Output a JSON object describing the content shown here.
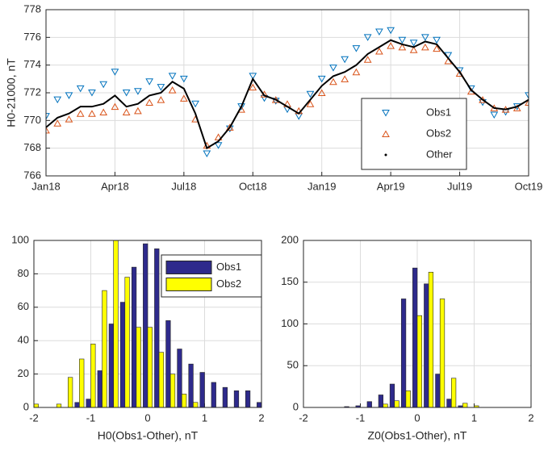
{
  "chart_data": [
    {
      "type": "scatter",
      "ylabel": "H0-21000, nT",
      "grid": true,
      "legend": "southeast",
      "x": [
        0,
        0.5,
        1,
        1.5,
        2,
        2.5,
        3,
        3.5,
        4,
        4.5,
        5,
        5.5,
        6,
        6.5,
        7,
        7.5,
        8,
        8.5,
        9,
        9.5,
        10,
        10.5,
        11,
        11.5,
        12,
        12.5,
        13,
        13.5,
        14,
        14.5,
        15,
        15.5,
        16,
        16.5,
        17,
        17.5,
        18,
        18.5,
        19,
        19.5,
        20,
        20.5,
        21
      ],
      "xlim": [
        0,
        21
      ],
      "xticks": [
        {
          "value": 0,
          "label": "Jan18"
        },
        {
          "value": 3,
          "label": "Apr18"
        },
        {
          "value": 6,
          "label": "Jul18"
        },
        {
          "value": 9,
          "label": "Oct18"
        },
        {
          "value": 12,
          "label": "Jan19"
        },
        {
          "value": 15,
          "label": "Apr19"
        },
        {
          "value": 18,
          "label": "Jul19"
        },
        {
          "value": 21,
          "label": "Oct19"
        }
      ],
      "ylim": [
        766,
        778
      ],
      "yticks": [
        766,
        768,
        770,
        772,
        774,
        776,
        778
      ],
      "series": [
        {
          "name": "Obs1",
          "color": "#0072bd",
          "style": "triangle-down",
          "values": [
            770.3,
            771.5,
            771.8,
            772.3,
            772,
            772.6,
            773.5,
            772,
            772.1,
            772.8,
            772.4,
            773.2,
            773,
            771.2,
            767.6,
            768.2,
            769.4,
            771,
            773.2,
            771.6,
            771.4,
            770.8,
            770.3,
            771.9,
            773,
            773.8,
            774.4,
            775.2,
            776,
            776.4,
            776.5,
            775.8,
            775.6,
            776,
            775.8,
            774.7,
            773.6,
            772.3,
            771.3,
            770.4,
            770.6,
            771,
            771.8
          ]
        },
        {
          "name": "Obs2",
          "color": "#d95319",
          "style": "triangle-up",
          "values": [
            769.3,
            769.8,
            770.1,
            770.5,
            770.5,
            770.6,
            771,
            770.6,
            770.7,
            771.3,
            771.5,
            772.2,
            771.6,
            770.1,
            768.2,
            768.8,
            769.5,
            770.8,
            772.4,
            771.9,
            771.5,
            771.2,
            770.7,
            771.2,
            772,
            772.8,
            773,
            773.5,
            774.4,
            775,
            775.4,
            775.3,
            775.1,
            775.3,
            775.2,
            774.3,
            773.4,
            772.1,
            771.5,
            770.9,
            770.8,
            770.9,
            771.3
          ]
        },
        {
          "name": "Other",
          "color": "#000000",
          "style": "line",
          "values": [
            769.5,
            770.2,
            770.5,
            771,
            771,
            771.2,
            771.8,
            771,
            771.2,
            771.8,
            772,
            772.8,
            772.3,
            770.5,
            768,
            768.5,
            769.5,
            771,
            773,
            771.8,
            771.5,
            771,
            770.5,
            771.5,
            772.5,
            773.2,
            773.5,
            774,
            774.8,
            775.3,
            775.8,
            775.5,
            775.3,
            775.7,
            775.5,
            774.5,
            773.5,
            772.2,
            771.5,
            770.9,
            770.8,
            771,
            771.5
          ]
        }
      ]
    },
    {
      "type": "histogram",
      "xlabel": "H0(Obs1-Other), nT",
      "grid": true,
      "legend": "northeast",
      "bins": [
        -2.1,
        -1.9,
        -1.7,
        -1.5,
        -1.3,
        -1.1,
        -0.9,
        -0.7,
        -0.5,
        -0.3,
        -0.1,
        0.1,
        0.3,
        0.5,
        0.7,
        0.9,
        1.1,
        1.3,
        1.5,
        1.7,
        1.9,
        2.1
      ],
      "xlim": [
        -2,
        2
      ],
      "xticks": [
        -2,
        -1,
        0,
        1,
        2
      ],
      "ylim": [
        0,
        100
      ],
      "yticks": [
        0,
        20,
        40,
        60,
        80,
        100
      ],
      "series": [
        {
          "name": "Obs1",
          "color": "#2e2a8c",
          "values": [
            0,
            0,
            0,
            0,
            3,
            5,
            22,
            50,
            63,
            84,
            98,
            95,
            52,
            35,
            26,
            21,
            15,
            12,
            10,
            10,
            3
          ]
        },
        {
          "name": "Obs2",
          "color": "#ffff00",
          "values": [
            2,
            0,
            2,
            18,
            29,
            38,
            70,
            100,
            78,
            48,
            48,
            33,
            20,
            8,
            3,
            0,
            0,
            0,
            0,
            0,
            0
          ]
        }
      ]
    },
    {
      "type": "histogram",
      "xlabel": "Z0(Obs1-Other), nT",
      "grid": true,
      "bins": [
        -2.1,
        -1.9,
        -1.7,
        -1.5,
        -1.3,
        -1.1,
        -0.9,
        -0.7,
        -0.5,
        -0.3,
        -0.1,
        0.1,
        0.3,
        0.5,
        0.7,
        0.9,
        1.1,
        1.3,
        1.5,
        1.7,
        1.9,
        2.1
      ],
      "xlim": [
        -2,
        2
      ],
      "xticks": [
        -2,
        -1,
        0,
        1,
        2
      ],
      "ylim": [
        0,
        200
      ],
      "yticks": [
        0,
        50,
        100,
        150,
        200
      ],
      "series": [
        {
          "name": "Obs1",
          "color": "#2e2a8c",
          "values": [
            0,
            0,
            0,
            0,
            1,
            2,
            7,
            15,
            28,
            130,
            167,
            148,
            40,
            10,
            2,
            0,
            0,
            0,
            0,
            0,
            0
          ]
        },
        {
          "name": "Obs2",
          "color": "#ffff00",
          "values": [
            0,
            0,
            0,
            0,
            0,
            0,
            0,
            4,
            8,
            20,
            110,
            162,
            130,
            35,
            5,
            2,
            0,
            0,
            0,
            0,
            0
          ]
        }
      ]
    }
  ]
}
